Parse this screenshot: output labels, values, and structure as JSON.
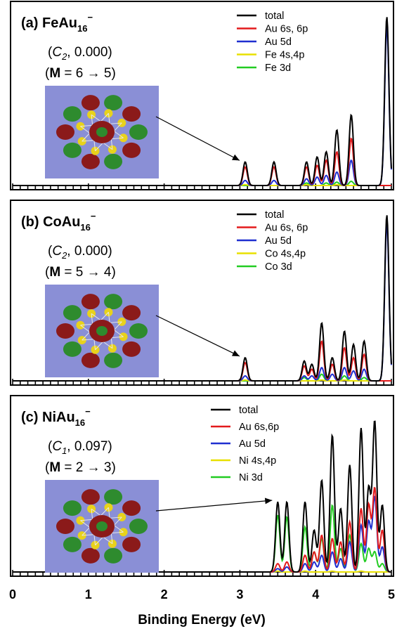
{
  "chart_data": {
    "type": "line",
    "xlabel": "Binding Energy (eV)",
    "xlim": [
      0,
      5
    ],
    "x_ticks": [
      "0",
      "1",
      "2",
      "3",
      "4",
      "5"
    ],
    "panels": [
      {
        "label_prefix": "(a) FeAu",
        "label_sub": "16",
        "label_sup": "−",
        "sym_group": "C",
        "sym_group_sub": "2",
        "sym_value": ", 0.000)",
        "mult_bold": "M",
        "mult_text": " = 6 → 5)",
        "legend": [
          "total",
          "Au  6s, 6p",
          "Au  5d",
          "Fe  4s,4p",
          "Fe  3d"
        ],
        "image_colors": [
          "#2e8b2e",
          "#8b1a1a",
          "#e8d21c"
        ],
        "ymax": 1.0,
        "series": [
          {
            "name": "total",
            "color": "#000000",
            "peaks": [
              [
                3.07,
                0.14
              ],
              [
                3.45,
                0.14
              ],
              [
                3.88,
                0.14
              ],
              [
                4.02,
                0.17
              ],
              [
                4.14,
                0.2
              ],
              [
                4.28,
                0.33
              ],
              [
                4.47,
                0.42
              ],
              [
                4.94,
                1.0
              ]
            ]
          },
          {
            "name": "Au  6s, 6p",
            "color": "#e31a1c",
            "peaks": [
              [
                3.07,
                0.11
              ],
              [
                3.45,
                0.11
              ],
              [
                3.88,
                0.11
              ],
              [
                4.02,
                0.12
              ],
              [
                4.14,
                0.15
              ],
              [
                4.28,
                0.2
              ],
              [
                4.47,
                0.28
              ],
              [
                4.94,
                0.0
              ]
            ]
          },
          {
            "name": "Au  5d",
            "color": "#1f2fd0",
            "peaks": [
              [
                3.07,
                0.03
              ],
              [
                3.45,
                0.03
              ],
              [
                3.88,
                0.04
              ],
              [
                4.02,
                0.05
              ],
              [
                4.14,
                0.06
              ],
              [
                4.28,
                0.08
              ],
              [
                4.47,
                0.15
              ],
              [
                4.94,
                0.94
              ]
            ]
          },
          {
            "name": "Fe  4s,4p",
            "color": "#e8e000",
            "peaks": [
              [
                3.07,
                0.005
              ],
              [
                3.88,
                0.005
              ],
              [
                4.28,
                0.005
              ]
            ]
          },
          {
            "name": "Fe  3d",
            "color": "#22cc22",
            "peaks": [
              [
                3.88,
                0.015
              ],
              [
                4.14,
                0.015
              ],
              [
                4.28,
                0.02
              ],
              [
                4.47,
                0.025
              ]
            ]
          }
        ]
      },
      {
        "label_prefix": "(b) CoAu",
        "label_sub": "16",
        "label_sup": "−",
        "sym_group": "C",
        "sym_group_sub": "2",
        "sym_value": ", 0.000)",
        "mult_bold": "M",
        "mult_text": " = 5 → 4)",
        "legend": [
          "total",
          "Au  6s, 6p",
          "Au  5d",
          "Co  4s,4p",
          "Co  3d"
        ],
        "image_colors": [
          "#2e8b2e",
          "#8b1a1a",
          "#e8d21c"
        ],
        "ymax": 1.0,
        "series": [
          {
            "name": "total",
            "color": "#000000",
            "peaks": [
              [
                3.07,
                0.14
              ],
              [
                3.85,
                0.12
              ],
              [
                3.95,
                0.1
              ],
              [
                4.08,
                0.35
              ],
              [
                4.22,
                0.14
              ],
              [
                4.38,
                0.3
              ],
              [
                4.5,
                0.22
              ],
              [
                4.64,
                0.24
              ],
              [
                4.94,
                1.0
              ]
            ]
          },
          {
            "name": "Au  6s, 6p",
            "color": "#e31a1c",
            "peaks": [
              [
                3.07,
                0.11
              ],
              [
                3.85,
                0.09
              ],
              [
                3.95,
                0.07
              ],
              [
                4.08,
                0.24
              ],
              [
                4.22,
                0.1
              ],
              [
                4.38,
                0.2
              ],
              [
                4.5,
                0.14
              ],
              [
                4.64,
                0.16
              ],
              [
                4.94,
                0.0
              ]
            ]
          },
          {
            "name": "Au  5d",
            "color": "#1f2fd0",
            "peaks": [
              [
                3.07,
                0.03
              ],
              [
                3.85,
                0.03
              ],
              [
                3.95,
                0.03
              ],
              [
                4.08,
                0.08
              ],
              [
                4.22,
                0.04
              ],
              [
                4.38,
                0.08
              ],
              [
                4.5,
                0.06
              ],
              [
                4.64,
                0.07
              ],
              [
                4.94,
                0.95
              ]
            ]
          },
          {
            "name": "Co  4s,4p",
            "color": "#e8e000",
            "peaks": [
              [
                3.07,
                0.005
              ],
              [
                4.08,
                0.005
              ],
              [
                4.38,
                0.005
              ]
            ]
          },
          {
            "name": "Co  3d",
            "color": "#22cc22",
            "peaks": [
              [
                3.85,
                0.02
              ],
              [
                4.08,
                0.04
              ],
              [
                4.38,
                0.03
              ],
              [
                4.64,
                0.02
              ]
            ]
          }
        ]
      },
      {
        "label_prefix": "(c) NiAu",
        "label_sub": "16",
        "label_sup": "−",
        "sym_group": "C",
        "sym_group_sub": "1",
        "sym_value": ", 0.097)",
        "mult_bold": "M",
        "mult_text": " = 2 → 3)",
        "legend": [
          "total",
          "Au  6s,6p",
          "Au  5d",
          "Ni  4s,4p",
          "Ni  3d"
        ],
        "image_colors": [
          "#2e8b2e",
          "#8b1a1a",
          "#e8d21c"
        ],
        "ymax": 1.0,
        "series": [
          {
            "name": "total",
            "color": "#000000",
            "peaks": [
              [
                3.5,
                0.42
              ],
              [
                3.62,
                0.42
              ],
              [
                3.86,
                0.42
              ],
              [
                3.98,
                0.25
              ],
              [
                4.08,
                0.55
              ],
              [
                4.22,
                0.82
              ],
              [
                4.33,
                0.38
              ],
              [
                4.45,
                0.64
              ],
              [
                4.6,
                0.86
              ],
              [
                4.7,
                0.5
              ],
              [
                4.78,
                0.9
              ],
              [
                4.88,
                0.4
              ]
            ]
          },
          {
            "name": "Au  6s,6p",
            "color": "#e31a1c",
            "peaks": [
              [
                3.5,
                0.05
              ],
              [
                3.62,
                0.06
              ],
              [
                3.86,
                0.1
              ],
              [
                3.98,
                0.12
              ],
              [
                4.08,
                0.22
              ],
              [
                4.22,
                0.2
              ],
              [
                4.33,
                0.18
              ],
              [
                4.45,
                0.3
              ],
              [
                4.6,
                0.38
              ],
              [
                4.7,
                0.4
              ],
              [
                4.78,
                0.5
              ],
              [
                4.88,
                0.25
              ]
            ]
          },
          {
            "name": "Au  5d",
            "color": "#1f2fd0",
            "peaks": [
              [
                3.5,
                0.02
              ],
              [
                3.62,
                0.03
              ],
              [
                3.86,
                0.05
              ],
              [
                3.98,
                0.06
              ],
              [
                4.08,
                0.1
              ],
              [
                4.22,
                0.12
              ],
              [
                4.33,
                0.08
              ],
              [
                4.45,
                0.18
              ],
              [
                4.6,
                0.28
              ],
              [
                4.7,
                0.3
              ],
              [
                4.78,
                0.45
              ],
              [
                4.88,
                0.15
              ]
            ]
          },
          {
            "name": "Ni  4s,4p",
            "color": "#e8e000",
            "peaks": [
              [
                3.5,
                0.005
              ],
              [
                3.86,
                0.005
              ],
              [
                4.22,
                0.005
              ],
              [
                4.6,
                0.005
              ]
            ]
          },
          {
            "name": "Ni  3d",
            "color": "#22cc22",
            "peaks": [
              [
                3.5,
                0.34
              ],
              [
                3.62,
                0.33
              ],
              [
                3.86,
                0.27
              ],
              [
                3.98,
                0.12
              ],
              [
                4.08,
                0.2
              ],
              [
                4.22,
                0.4
              ],
              [
                4.33,
                0.14
              ],
              [
                4.45,
                0.22
              ],
              [
                4.6,
                0.17
              ],
              [
                4.7,
                0.14
              ],
              [
                4.78,
                0.12
              ],
              [
                4.88,
                0.05
              ]
            ]
          }
        ]
      }
    ]
  }
}
